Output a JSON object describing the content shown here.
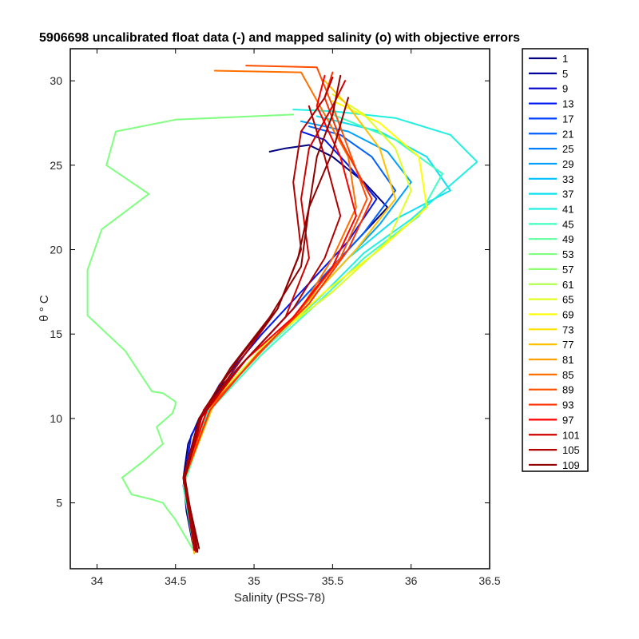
{
  "chart_data": {
    "type": "line",
    "title": "5906698 uncalibrated float data (-) and mapped salinity (o) with objective errors",
    "xlabel": "Salinity (PSS-78)",
    "ylabel": "θ ° C",
    "xlim": [
      33.83,
      36.5
    ],
    "ylim": [
      1.1,
      31.9
    ],
    "xticks": [
      "34",
      "34.5",
      "35",
      "35.5",
      "36",
      "36.5"
    ],
    "xtick_values": [
      34,
      34.5,
      35,
      35.5,
      36,
      36.5
    ],
    "yticks": [
      "5",
      "10",
      "15",
      "20",
      "25",
      "30"
    ],
    "ytick_values": [
      5,
      10,
      15,
      20,
      25,
      30
    ],
    "grid": false,
    "legend_placement": "outside-right",
    "series": [
      {
        "name": "1",
        "color": "#00007f"
      },
      {
        "name": "5",
        "color": "#00009f"
      },
      {
        "name": "9",
        "color": "#0000c8"
      },
      {
        "name": "13",
        "color": "#0018f0"
      },
      {
        "name": "17",
        "color": "#0040ff"
      },
      {
        "name": "21",
        "color": "#0060ff"
      },
      {
        "name": "25",
        "color": "#0080ff"
      },
      {
        "name": "29",
        "color": "#00a0ff"
      },
      {
        "name": "33",
        "color": "#00c0ff"
      },
      {
        "name": "37",
        "color": "#10e0f0"
      },
      {
        "name": "41",
        "color": "#20f0e0"
      },
      {
        "name": "45",
        "color": "#40ffc0"
      },
      {
        "name": "49",
        "color": "#60ffa0"
      },
      {
        "name": "53",
        "color": "#80ff80"
      },
      {
        "name": "57",
        "color": "#90ff70"
      },
      {
        "name": "61",
        "color": "#b0ff50"
      },
      {
        "name": "65",
        "color": "#e0ff20"
      },
      {
        "name": "69",
        "color": "#ffff00"
      },
      {
        "name": "73",
        "color": "#ffe000"
      },
      {
        "name": "77",
        "color": "#ffc000"
      },
      {
        "name": "81",
        "color": "#ffa000"
      },
      {
        "name": "85",
        "color": "#ff7000"
      },
      {
        "name": "89",
        "color": "#ff5000"
      },
      {
        "name": "93",
        "color": "#ff3000"
      },
      {
        "name": "97",
        "color": "#ff0000"
      },
      {
        "name": "101",
        "color": "#d00000"
      },
      {
        "name": "105",
        "color": "#b00000"
      },
      {
        "name": "109",
        "color": "#8f0000"
      }
    ],
    "profiles": [
      {
        "color": "#80ff80",
        "s": [
          34.62,
          34.5,
          34.45,
          34.42,
          34.35,
          34.22,
          34.16,
          34.3,
          34.42,
          34.38,
          34.48,
          34.5,
          34.5,
          34.42,
          34.35,
          34.18,
          33.94,
          33.94,
          34.03,
          34.33,
          34.06,
          34.12,
          34.5,
          35.25
        ],
        "t": [
          2.1,
          4.0,
          4.6,
          5.0,
          5.2,
          5.5,
          6.5,
          7.5,
          8.5,
          9.5,
          10.3,
          10.8,
          11.0,
          11.5,
          11.6,
          14.0,
          16.1,
          18.8,
          21.2,
          23.3,
          25.0,
          27.0,
          27.7,
          28.0
        ]
      },
      {
        "color": "#00007f",
        "s": [
          34.62,
          34.57,
          34.55,
          34.58,
          34.65,
          34.8,
          35.0,
          35.2,
          35.4,
          35.55,
          35.7,
          35.85,
          35.7,
          35.5,
          35.35,
          35.2,
          35.1
        ],
        "t": [
          2.1,
          4.5,
          6.5,
          8.5,
          10.0,
          12.0,
          14.0,
          16.0,
          18.0,
          19.5,
          21.0,
          22.5,
          24.0,
          25.5,
          26.2,
          26.0,
          25.8
        ]
      },
      {
        "color": "#0018f0",
        "s": [
          34.62,
          34.55,
          34.6,
          34.78,
          35.05,
          35.35,
          35.6,
          35.78,
          35.6,
          35.45,
          35.3
        ],
        "t": [
          2.2,
          6.0,
          9.0,
          12.0,
          15.0,
          18.0,
          20.5,
          23.0,
          25.0,
          26.5,
          27.0
        ]
      },
      {
        "color": "#0060ff",
        "s": [
          34.63,
          34.55,
          34.65,
          34.85,
          35.15,
          35.45,
          35.7,
          35.9,
          35.75,
          35.55,
          35.35
        ],
        "t": [
          2.3,
          6.0,
          10.0,
          12.5,
          15.5,
          18.5,
          21.0,
          23.5,
          25.5,
          26.8,
          27.3
        ]
      },
      {
        "color": "#00a0ff",
        "s": [
          34.62,
          34.56,
          34.7,
          34.95,
          35.25,
          35.55,
          35.8,
          36.0,
          35.85,
          35.6,
          35.3
        ],
        "t": [
          2.2,
          6.5,
          10.5,
          13.0,
          16.0,
          19.0,
          21.5,
          24.0,
          25.8,
          27.0,
          27.6
        ]
      },
      {
        "color": "#10e0f0",
        "s": [
          34.62,
          34.55,
          34.7,
          35.0,
          35.3,
          35.6,
          35.9,
          36.25,
          36.1,
          35.8,
          35.4
        ],
        "t": [
          2.1,
          6.5,
          10.5,
          13.5,
          16.5,
          19.5,
          21.8,
          23.5,
          25.5,
          27.0,
          27.9
        ]
      },
      {
        "color": "#20f0e0",
        "s": [
          34.62,
          34.56,
          34.72,
          35.05,
          35.4,
          35.7,
          36.0,
          36.42,
          36.25,
          35.9,
          35.5,
          35.25
        ],
        "t": [
          2.2,
          6.5,
          10.8,
          14.0,
          17.0,
          19.8,
          21.8,
          25.2,
          26.8,
          27.8,
          28.2,
          28.3
        ]
      },
      {
        "color": "#40ffc0",
        "s": [
          34.62,
          34.55,
          34.72,
          35.05,
          35.4,
          35.7,
          36.05,
          36.2,
          35.9,
          35.5
        ],
        "t": [
          2.2,
          6.0,
          10.5,
          13.8,
          16.8,
          19.5,
          22.0,
          24.5,
          26.5,
          28.0
        ]
      },
      {
        "color": "#ffff00",
        "s": [
          34.62,
          34.56,
          34.75,
          35.1,
          35.45,
          35.8,
          36.1,
          36.05,
          35.8,
          35.5
        ],
        "t": [
          2.0,
          6.5,
          11.0,
          14.5,
          17.5,
          20.0,
          22.5,
          25.5,
          27.5,
          28.8
        ]
      },
      {
        "color": "#e0ff20",
        "s": [
          34.63,
          34.56,
          34.74,
          35.08,
          35.5,
          35.85,
          36.0,
          35.9,
          35.7,
          35.5
        ],
        "t": [
          2.2,
          6.5,
          11.0,
          14.5,
          17.5,
          20.5,
          23.5,
          26.0,
          28.0,
          29.2
        ]
      },
      {
        "color": "#ffc000",
        "s": [
          34.62,
          34.56,
          34.75,
          35.05,
          35.35,
          35.65,
          35.9,
          35.8,
          35.6,
          35.45
        ],
        "t": [
          2.0,
          6.5,
          11.0,
          14.0,
          17.0,
          20.0,
          23.0,
          26.0,
          28.5,
          30.0
        ]
      },
      {
        "color": "#ff7000",
        "s": [
          34.63,
          34.56,
          34.7,
          35.0,
          35.3,
          35.5,
          35.65,
          35.6,
          35.45,
          35.3,
          34.75
        ],
        "t": [
          2.3,
          6.5,
          10.5,
          13.5,
          16.5,
          19.5,
          22.5,
          25.5,
          28.0,
          30.5,
          30.6
        ]
      },
      {
        "color": "#ff5000",
        "s": [
          34.63,
          34.55,
          34.7,
          35.0,
          35.3,
          35.55,
          35.72,
          35.6,
          35.5,
          35.4,
          34.95
        ],
        "t": [
          2.2,
          6.5,
          10.5,
          13.5,
          16.5,
          19.5,
          23.0,
          26.0,
          28.5,
          30.8,
          30.9
        ]
      },
      {
        "color": "#ff3000",
        "s": [
          34.62,
          34.56,
          34.72,
          35.02,
          35.35,
          35.6,
          35.75,
          35.55,
          35.45,
          35.5
        ],
        "t": [
          2.2,
          6.5,
          10.5,
          13.8,
          16.8,
          20.0,
          23.0,
          26.5,
          29.0,
          30.5
        ]
      },
      {
        "color": "#ff0000",
        "s": [
          34.63,
          34.55,
          34.7,
          34.95,
          35.25,
          35.5,
          35.65,
          35.55,
          35.4,
          35.45
        ],
        "t": [
          2.1,
          6.5,
          10.5,
          13.5,
          16.0,
          19.0,
          22.0,
          25.5,
          28.5,
          30.3
        ]
      },
      {
        "color": "#d00000",
        "s": [
          34.64,
          34.55,
          34.66,
          34.9,
          35.2,
          35.35,
          35.3,
          35.35,
          35.5,
          35.58
        ],
        "t": [
          2.2,
          6.5,
          10.0,
          13.0,
          16.0,
          19.5,
          23.0,
          26.0,
          28.5,
          30.0
        ]
      },
      {
        "color": "#b00000",
        "s": [
          34.62,
          34.55,
          34.66,
          34.88,
          35.15,
          35.3,
          35.25,
          35.3,
          35.45,
          35.5
        ],
        "t": [
          2.2,
          6.5,
          10.0,
          13.0,
          16.5,
          20.0,
          24.0,
          27.0,
          29.0,
          30.2
        ]
      },
      {
        "color": "#8f0000",
        "s": [
          34.65,
          34.55,
          34.65,
          34.85,
          35.1,
          35.3,
          35.35,
          35.4,
          35.5,
          35.55
        ],
        "t": [
          2.3,
          6.5,
          10.0,
          13.0,
          16.0,
          19.0,
          22.5,
          25.5,
          28.0,
          30.3
        ]
      },
      {
        "color": "#8f0000",
        "s": [
          34.64,
          34.56,
          34.68,
          34.9,
          35.15,
          35.28,
          35.35,
          35.5,
          35.6
        ],
        "t": [
          2.1,
          6.5,
          10.5,
          13.5,
          16.5,
          19.5,
          22.5,
          25.8,
          29.0
        ]
      },
      {
        "color": "#b00000",
        "s": [
          34.63,
          34.55,
          34.68,
          34.95,
          35.25,
          35.45,
          35.55,
          35.45,
          35.35
        ],
        "t": [
          2.2,
          6.5,
          10.5,
          13.5,
          16.5,
          19.5,
          22.0,
          25.5,
          28.5
        ]
      }
    ]
  }
}
